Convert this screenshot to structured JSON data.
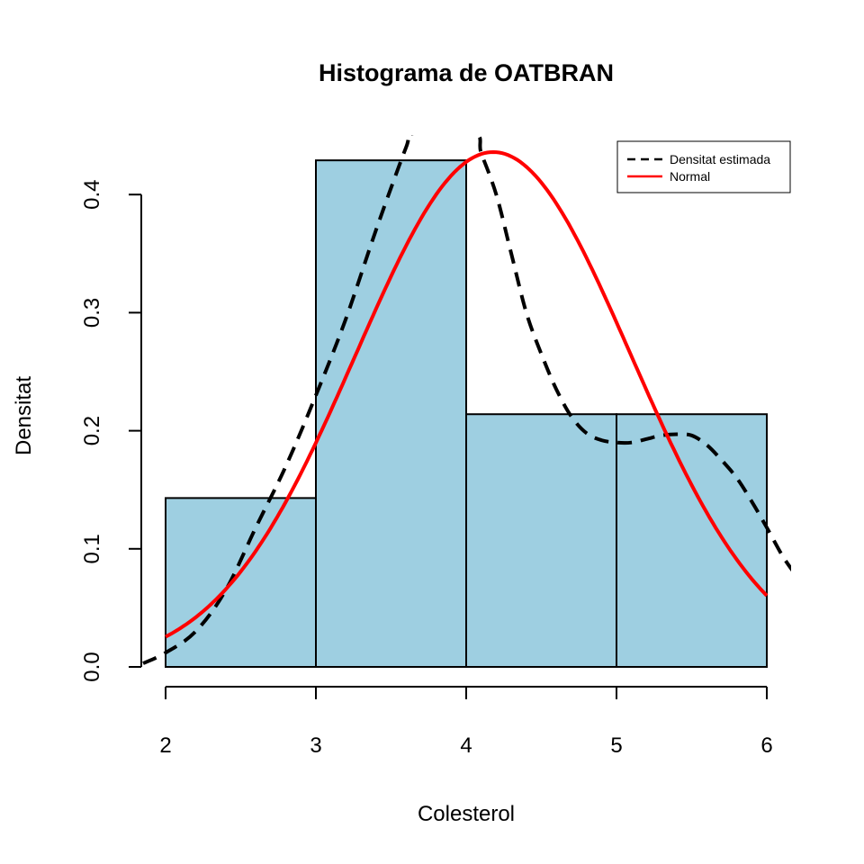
{
  "chart_data": {
    "type": "bar",
    "title": "Histograma de OATBRAN",
    "xlabel": "Colesterol",
    "ylabel": "Densitat",
    "xlim": [
      2,
      6
    ],
    "ylim": [
      0,
      0.43
    ],
    "x_ticks": [
      "2",
      "3",
      "4",
      "5",
      "6"
    ],
    "y_ticks": [
      "0.0",
      "0.1",
      "0.2",
      "0.3",
      "0.4"
    ],
    "bins": [
      {
        "start": 2,
        "end": 3,
        "density": 0.143
      },
      {
        "start": 3,
        "end": 4,
        "density": 0.429
      },
      {
        "start": 4,
        "end": 5,
        "density": 0.214
      },
      {
        "start": 5,
        "end": 6,
        "density": 0.214
      }
    ],
    "bar_color": "#9ecfe1",
    "series": [
      {
        "name": "Densitat estimada",
        "type": "line",
        "style": "dashed",
        "color": "#000000",
        "x": [
          1.85,
          2.0,
          2.2,
          2.4,
          2.6,
          2.8,
          3.0,
          3.2,
          3.4,
          3.6,
          3.65,
          4.05,
          4.1,
          4.2,
          4.3,
          4.4,
          4.5,
          4.6,
          4.7,
          4.8,
          4.9,
          5.0,
          5.1,
          5.2,
          5.3,
          5.4,
          5.5,
          5.6,
          5.7,
          5.8,
          5.9,
          6.0,
          6.1,
          6.18
        ],
        "y": [
          0.003,
          0.012,
          0.03,
          0.065,
          0.118,
          0.17,
          0.23,
          0.295,
          0.37,
          0.44,
          0.452,
          0.452,
          0.435,
          0.4,
          0.35,
          0.3,
          0.265,
          0.235,
          0.212,
          0.198,
          0.192,
          0.19,
          0.19,
          0.193,
          0.196,
          0.197,
          0.196,
          0.188,
          0.175,
          0.16,
          0.14,
          0.118,
          0.095,
          0.08
        ]
      },
      {
        "name": "Normal",
        "type": "line",
        "style": "solid",
        "color": "#ff0000",
        "mean": 4.18,
        "sd": 0.915,
        "x_range": [
          2,
          6
        ]
      }
    ],
    "legend": {
      "position": "top-right",
      "entries": [
        "Densitat estimada",
        "Normal"
      ]
    }
  }
}
